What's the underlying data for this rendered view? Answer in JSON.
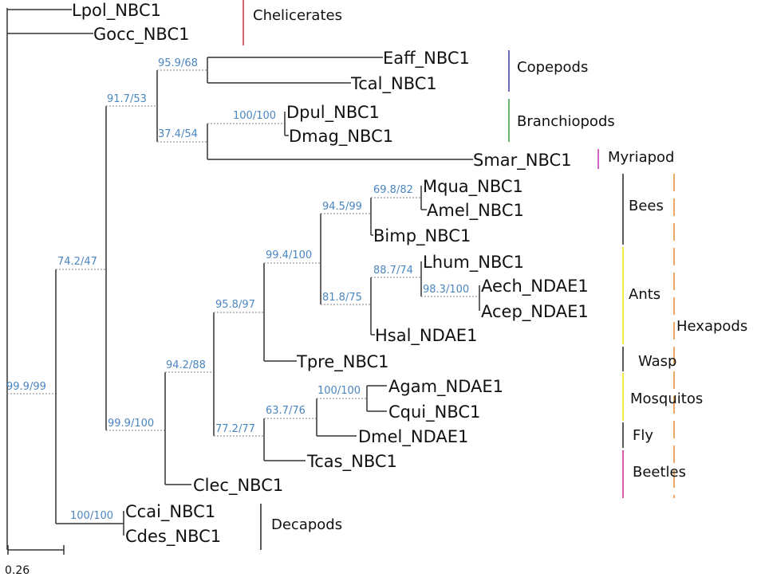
{
  "leaves": {
    "lpol": "Lpol_NBC1",
    "gocc": "Gocc_NBC1",
    "eaff": "Eaff_NBC1",
    "tcal": "Tcal_NBC1",
    "dpul": "Dpul_NBC1",
    "dmag": "Dmag_NBC1",
    "smar": "Smar_NBC1",
    "mqua": "Mqua_NBC1",
    "amel": "Amel_NBC1",
    "bimp": "Bimp_NBC1",
    "lhum": "Lhum_NBC1",
    "aech": "Aech_NDAE1",
    "acep": "Acep_NDAE1",
    "hsal": "Hsal_NDAE1",
    "tpre": "Tpre_NBC1",
    "agam": "Agam_NDAE1",
    "cqui": "Cqui_NBC1",
    "dmel": "Dmel_NDAE1",
    "tcas": "Tcas_NBC1",
    "clec": "Clec_NBC1",
    "ccai": "Ccai_NBC1",
    "cdes": "Cdes_NBC1"
  },
  "supports": {
    "root": "99.9/99",
    "n742": "74.2/47",
    "n917": "91.7/53",
    "n959": "95.9/68",
    "n374": "37.4/54",
    "dpuldmag": "100/100",
    "insecta": "99.9/100",
    "n942": "94.2/88",
    "n958": "95.8/97",
    "n994": "99.4/100",
    "n945": "94.5/99",
    "n698": "69.8/82",
    "n818": "81.8/75",
    "n887": "88.7/74",
    "n983": "98.3/100",
    "n772": "77.2/77",
    "n637": "63.7/76",
    "mosq": "100/100",
    "decapods": "100/100"
  },
  "clades": {
    "chelicerates": "Chelicerates",
    "copepods": "Copepods",
    "branchiopods": "Branchiopods",
    "myriapod": "Myriapod",
    "bees": "Bees",
    "ants": "Ants",
    "wasp": "Wasp",
    "mosquitos": "Mosquitos",
    "fly": "Fly",
    "beetles": "Beetles",
    "decapods": "Decapods",
    "hexapods": "Hexapods"
  },
  "clade_colors": {
    "chelicerates": "#c83040",
    "copepods": "#3a3aa8",
    "branchiopods": "#3aa040",
    "myriapod": "#c030b0",
    "bees": "#222222",
    "ants": "#e8e000",
    "wasp": "#222222",
    "mosquitos": "#e8e000",
    "fly": "#222222",
    "beetles": "#cc2288",
    "decapods": "#222222",
    "hexapods": "#e88a30"
  },
  "scale": {
    "label": "0.26"
  }
}
